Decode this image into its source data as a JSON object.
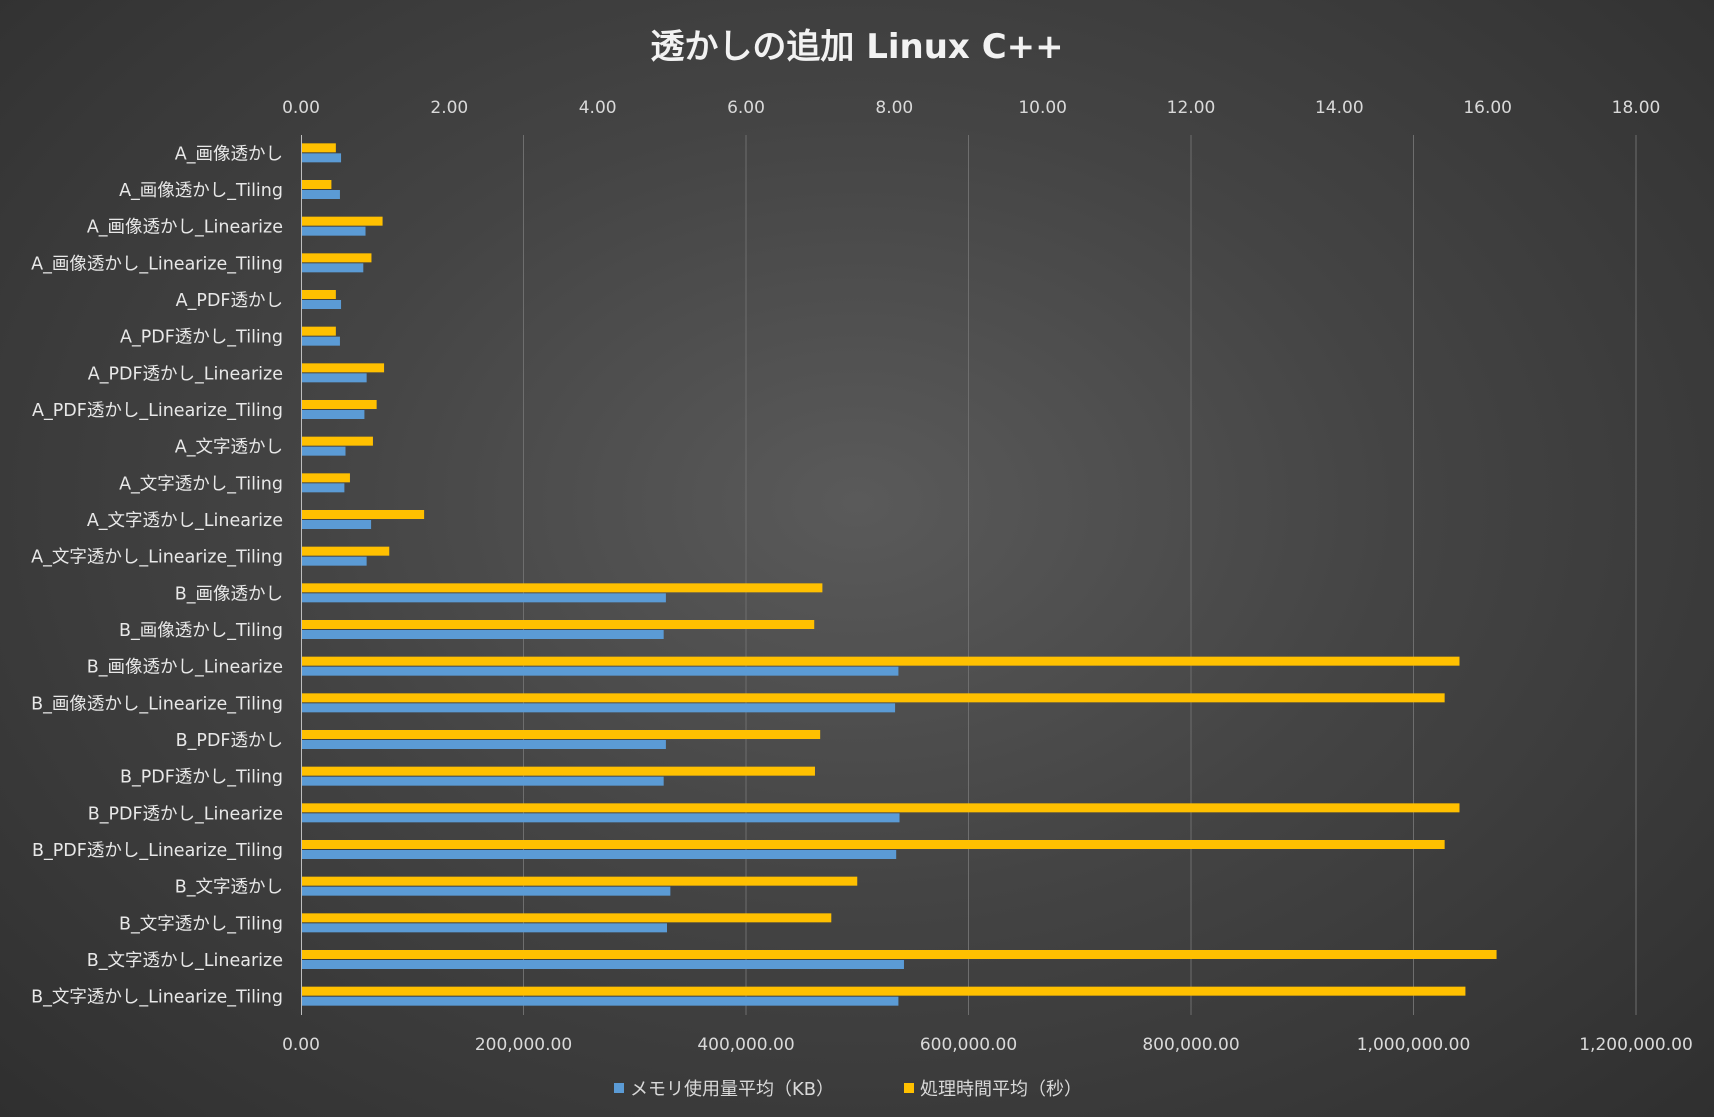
{
  "chart_data": {
    "type": "bar",
    "orientation": "horizontal",
    "title": "透かしの追加 Linux C++",
    "categories": [
      "A_画像透かし",
      "A_画像透かし_Tiling",
      "A_画像透かし_Linearize",
      "A_画像透かし_Linearize_Tiling",
      "A_PDF透かし",
      "A_PDF透かし_Tiling",
      "A_PDF透かし_Linearize",
      "A_PDF透かし_Linearize_Tiling",
      "A_文字透かし",
      "A_文字透かし_Tiling",
      "A_文字透かし_Linearize",
      "A_文字透かし_Linearize_Tiling",
      "B_画像透かし",
      "B_画像透かし_Tiling",
      "B_画像透かし_Linearize",
      "B_画像透かし_Linearize_Tiling",
      "B_PDF透かし",
      "B_PDF透かし_Tiling",
      "B_PDF透かし_Linearize",
      "B_PDF透かし_Linearize_Tiling",
      "B_文字透かし",
      "B_文字透かし_Tiling",
      "B_文字透かし_Linearize",
      "B_文字透かし_Linearize_Tiling"
    ],
    "series": [
      {
        "name": "メモリ使用量平均（KB）",
        "axis": "bottom",
        "color": "#5b9bd5",
        "values": [
          36000,
          35000,
          58000,
          56000,
          36000,
          35000,
          59000,
          57000,
          40000,
          39000,
          63000,
          59000,
          328000,
          326000,
          537000,
          534000,
          328000,
          326000,
          538000,
          535000,
          332000,
          329000,
          542000,
          537000
        ]
      },
      {
        "name": "処理時間平均（秒）",
        "axis": "top",
        "color": "#ffc000",
        "values": [
          0.47,
          0.41,
          1.1,
          0.95,
          0.47,
          0.47,
          1.12,
          1.02,
          0.97,
          0.66,
          1.66,
          1.19,
          7.03,
          6.92,
          15.62,
          15.42,
          7.0,
          6.93,
          15.62,
          15.42,
          7.5,
          7.15,
          16.12,
          15.7
        ]
      }
    ],
    "axes": {
      "bottom": {
        "min": 0,
        "max": 1200000,
        "ticks": [
          "0.00",
          "200,000.00",
          "400,000.00",
          "600,000.00",
          "800,000.00",
          "1,000,000.00",
          "1,200,000.00"
        ]
      },
      "top": {
        "min": 0,
        "max": 18,
        "ticks": [
          "0.00",
          "2.00",
          "4.00",
          "6.00",
          "8.00",
          "10.00",
          "12.00",
          "14.00",
          "16.00",
          "18.00"
        ]
      }
    },
    "grid": true,
    "legend_position": "bottom"
  }
}
